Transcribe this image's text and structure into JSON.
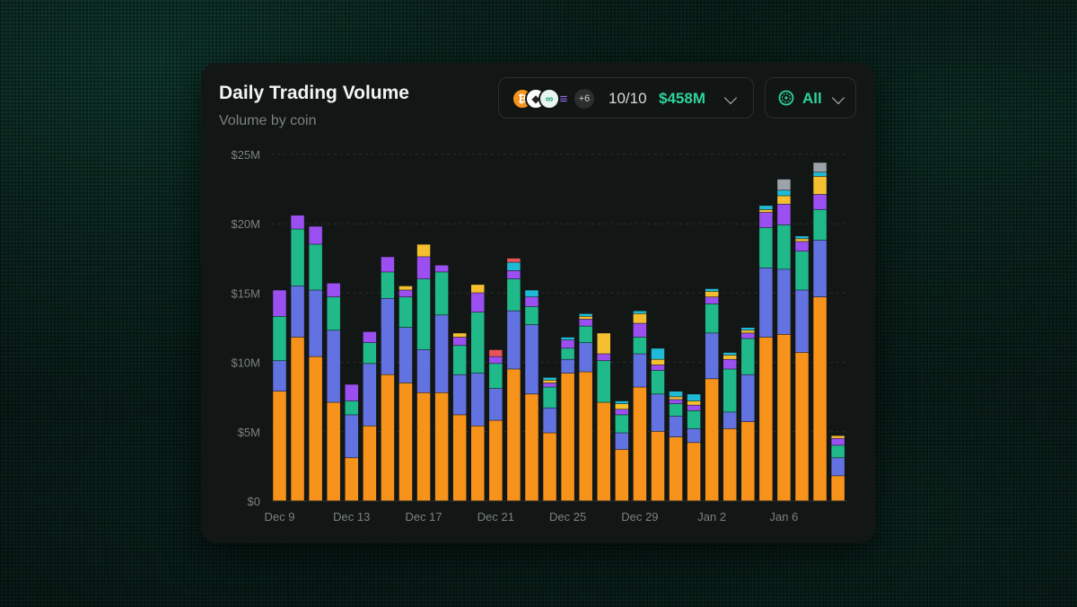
{
  "header": {
    "title": "Daily Trading Volume",
    "subtitle": "Volume by coin"
  },
  "coin_filter": {
    "icons": [
      "btc-icon",
      "eth-icon",
      "hype-icon",
      "sol-icon"
    ],
    "more_label": "+6",
    "count_label": "10/10",
    "total_label": "$458M"
  },
  "range_filter": {
    "label": "All"
  },
  "colors": {
    "accent": "#2fd39a",
    "orange": "#f7931a",
    "blue": "#6272e0",
    "green": "#1fb98a",
    "purple": "#9b4ff0",
    "yellow": "#f5c02f",
    "teal": "#1fbbd6",
    "red": "#e7525b",
    "gray": "#9aa3a8"
  },
  "chart_data": {
    "type": "bar",
    "stacked": true,
    "ylim": [
      0,
      25
    ],
    "yticks": [
      0,
      5,
      10,
      15,
      20,
      25
    ],
    "ytick_labels": [
      "$0",
      "$5M",
      "$10M",
      "$15M",
      "$20M",
      "$25M"
    ],
    "xtick_labels": [
      {
        "index": 0,
        "label": "Dec 9"
      },
      {
        "index": 4,
        "label": "Dec 13"
      },
      {
        "index": 8,
        "label": "Dec 17"
      },
      {
        "index": 12,
        "label": "Dec 21"
      },
      {
        "index": 16,
        "label": "Dec 25"
      },
      {
        "index": 20,
        "label": "Dec 29"
      },
      {
        "index": 24,
        "label": "Jan 2"
      },
      {
        "index": 28,
        "label": "Jan 6"
      }
    ],
    "series_colors": [
      "#f7931a",
      "#6272e0",
      "#1fb98a",
      "#9b4ff0",
      "#f5c02f",
      "#1fbbd6",
      "#e7525b",
      "#9aa3a8"
    ],
    "bars": [
      [
        7.9,
        2.2,
        3.2,
        1.9,
        0,
        0,
        0,
        0
      ],
      [
        11.8,
        3.7,
        4.1,
        1.0,
        0,
        0,
        0,
        0
      ],
      [
        10.4,
        4.8,
        3.3,
        1.3,
        0,
        0,
        0,
        0
      ],
      [
        7.1,
        5.2,
        2.4,
        1.0,
        0,
        0,
        0,
        0
      ],
      [
        3.1,
        3.1,
        1.0,
        1.2,
        0,
        0,
        0,
        0
      ],
      [
        5.4,
        4.5,
        1.5,
        0.8,
        0,
        0,
        0,
        0
      ],
      [
        9.1,
        5.5,
        1.9,
        1.1,
        0,
        0,
        0,
        0
      ],
      [
        8.5,
        4.0,
        2.2,
        0.5,
        0.3,
        0,
        0,
        0
      ],
      [
        7.8,
        3.1,
        5.1,
        1.6,
        0.9,
        0,
        0,
        0
      ],
      [
        7.8,
        5.6,
        3.1,
        0.5,
        0,
        0,
        0,
        0
      ],
      [
        6.2,
        2.9,
        2.1,
        0.6,
        0.3,
        0,
        0,
        0
      ],
      [
        5.4,
        3.8,
        4.4,
        1.4,
        0.6,
        0,
        0,
        0
      ],
      [
        5.8,
        2.3,
        1.8,
        0.5,
        0,
        0,
        0.5,
        0
      ],
      [
        9.5,
        4.2,
        2.3,
        0.6,
        0,
        0.6,
        0.3,
        0
      ],
      [
        7.7,
        5.0,
        1.3,
        0.7,
        0,
        0.5,
        0,
        0
      ],
      [
        4.9,
        1.8,
        1.5,
        0.3,
        0.2,
        0.2,
        0,
        0
      ],
      [
        9.2,
        1.0,
        0.8,
        0.6,
        0,
        0.2,
        0,
        0
      ],
      [
        9.3,
        2.1,
        1.2,
        0.5,
        0.2,
        0.2,
        0,
        0
      ],
      [
        7.1,
        0.0,
        3.0,
        0.5,
        1.5,
        0,
        0,
        0
      ],
      [
        3.7,
        1.2,
        1.3,
        0.4,
        0.4,
        0.2,
        0,
        0
      ],
      [
        8.2,
        2.4,
        1.2,
        1.0,
        0.7,
        0.2,
        0,
        0
      ],
      [
        5.0,
        2.7,
        1.7,
        0.4,
        0.4,
        0.8,
        0,
        0
      ],
      [
        4.6,
        1.5,
        0.9,
        0.3,
        0.2,
        0.4,
        0,
        0
      ],
      [
        4.2,
        1.0,
        1.3,
        0.4,
        0.3,
        0.5,
        0,
        0
      ],
      [
        8.8,
        3.3,
        2.1,
        0.5,
        0.4,
        0.2,
        0,
        0
      ],
      [
        5.2,
        1.2,
        3.1,
        0.7,
        0.3,
        0.2,
        0,
        0
      ],
      [
        5.7,
        3.4,
        2.6,
        0.4,
        0.2,
        0.2,
        0,
        0
      ],
      [
        11.8,
        5.0,
        2.9,
        1.1,
        0.2,
        0.3,
        0,
        0
      ],
      [
        12.0,
        4.7,
        3.2,
        1.5,
        0.6,
        0.4,
        0,
        0.8
      ],
      [
        10.7,
        4.5,
        2.8,
        0.7,
        0.2,
        0.2,
        0,
        0
      ],
      [
        14.7,
        4.1,
        2.2,
        1.1,
        1.3,
        0.3,
        0,
        0.7
      ],
      [
        1.8,
        1.3,
        0.9,
        0.5,
        0.2,
        0,
        0,
        0
      ]
    ]
  }
}
